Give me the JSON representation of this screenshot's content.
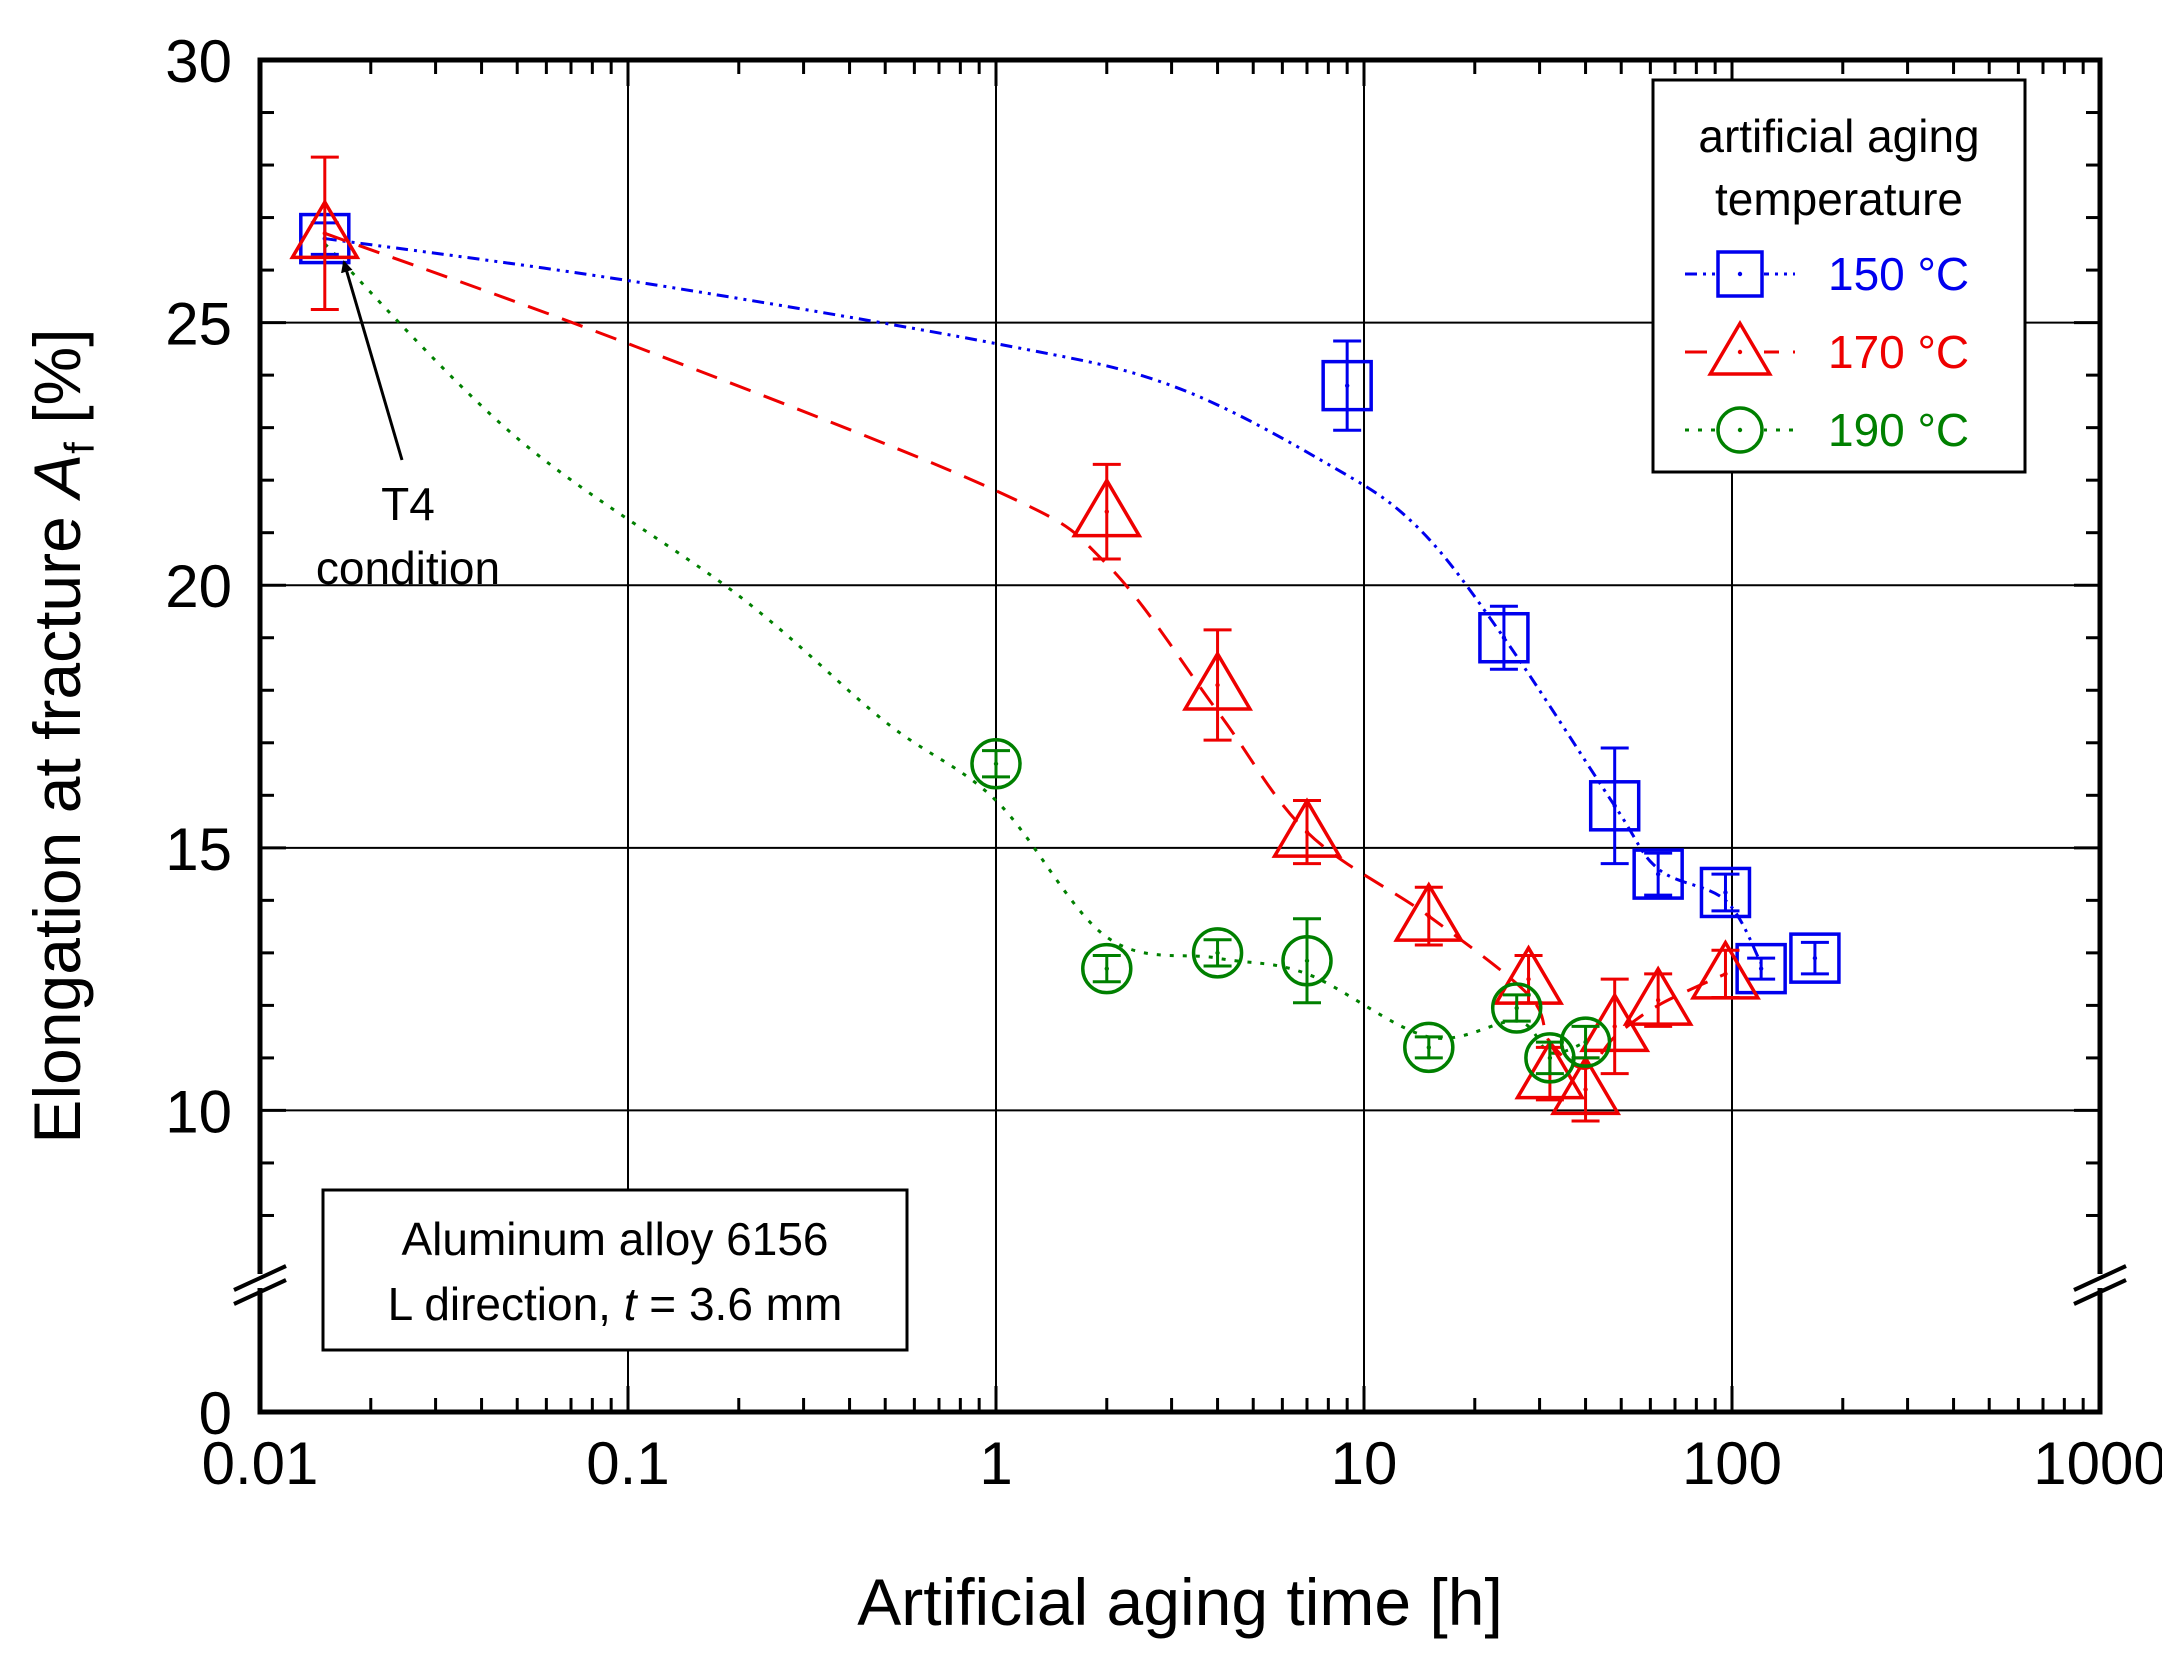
{
  "chart_data": {
    "type": "scatter",
    "xscale": "log",
    "xlim": [
      0.01,
      1000
    ],
    "ylim_lower_segment": [
      0,
      7
    ],
    "ylim_upper_segment": [
      7,
      30
    ],
    "axis_break": "y between 0 and 7",
    "grid": true,
    "xlabel": "Artificial aging time [h]",
    "ylabel_main": "Elongation at fracture ",
    "ylabel_symbol": "A",
    "ylabel_sub": "f",
    "ylabel_unit": " [%]",
    "x_tick_labels": [
      "0.01",
      "0.1",
      "1",
      "10",
      "100",
      "1000"
    ],
    "y_tick_labels": [
      "0",
      "10",
      "15",
      "20",
      "25",
      "30"
    ],
    "legend": {
      "title_line1": "artificial aging",
      "title_line2": "temperature",
      "placement": "top-right"
    },
    "series": [
      {
        "name": "150 °C",
        "color": "#0000ee",
        "marker": "square",
        "line_style": "dash-dot-dot",
        "points": [
          {
            "x": 0.015,
            "y": 26.6,
            "err": 0.3
          },
          {
            "x": 9,
            "y": 23.8,
            "err": 0.85
          },
          {
            "x": 24,
            "y": 19.0,
            "err": 0.6
          },
          {
            "x": 48,
            "y": 15.8,
            "err": 1.1
          },
          {
            "x": 63,
            "y": 14.5,
            "err": 0.4
          },
          {
            "x": 96,
            "y": 14.15,
            "err": 0.35
          },
          {
            "x": 120,
            "y": 12.7,
            "err": 0.2
          },
          {
            "x": 168,
            "y": 12.9,
            "err": 0.3
          }
        ],
        "curve": [
          [
            0.015,
            26.6
          ],
          [
            0.1,
            25.8
          ],
          [
            1,
            24.6
          ],
          [
            3,
            23.8
          ],
          [
            8,
            22.3
          ],
          [
            14,
            21.1
          ],
          [
            24,
            19.0
          ],
          [
            48,
            15.8
          ],
          [
            63,
            14.6
          ],
          [
            96,
            14.0
          ],
          [
            120,
            12.8
          ]
        ]
      },
      {
        "name": "170 °C",
        "color": "#ee0000",
        "marker": "triangle",
        "line_style": "dash",
        "points": [
          {
            "x": 0.015,
            "y": 26.7,
            "err": 1.45
          },
          {
            "x": 2,
            "y": 21.4,
            "err": 0.9
          },
          {
            "x": 4,
            "y": 18.1,
            "err": 1.05
          },
          {
            "x": 7,
            "y": 15.3,
            "err": 0.6
          },
          {
            "x": 15,
            "y": 13.7,
            "err": 0.55
          },
          {
            "x": 28,
            "y": 12.5,
            "err": 0.45
          },
          {
            "x": 32,
            "y": 10.7,
            "err": 0.5
          },
          {
            "x": 40,
            "y": 10.4,
            "err": 0.6
          },
          {
            "x": 48,
            "y": 11.6,
            "err": 0.9
          },
          {
            "x": 63,
            "y": 12.1,
            "err": 0.5
          },
          {
            "x": 96,
            "y": 12.6,
            "err": 0.45
          }
        ],
        "curve": [
          [
            0.015,
            26.7
          ],
          [
            0.1,
            24.6
          ],
          [
            1,
            21.8
          ],
          [
            2,
            20.4
          ],
          [
            4,
            17.6
          ],
          [
            7,
            15.3
          ],
          [
            15,
            13.7
          ],
          [
            28,
            12.2
          ],
          [
            32,
            11.3
          ],
          [
            40,
            10.8
          ],
          [
            48,
            11.4
          ],
          [
            63,
            12.0
          ],
          [
            96,
            12.6
          ]
        ]
      },
      {
        "name": "190 °C",
        "color": "#008000",
        "marker": "circle",
        "line_style": "dot",
        "points": [
          {
            "x": 1,
            "y": 16.6,
            "err": 0.25
          },
          {
            "x": 2,
            "y": 12.7,
            "err": 0.25
          },
          {
            "x": 4,
            "y": 13.0,
            "err": 0.25
          },
          {
            "x": 7,
            "y": 12.85,
            "err": 0.8
          },
          {
            "x": 15,
            "y": 11.2,
            "err": 0.2
          },
          {
            "x": 26,
            "y": 11.95,
            "err": 0.25
          },
          {
            "x": 32,
            "y": 11.0,
            "err": 0.3
          },
          {
            "x": 40,
            "y": 11.3,
            "err": 0.3
          }
        ],
        "curve": [
          [
            0.015,
            26.5
          ],
          [
            0.05,
            22.8
          ],
          [
            0.2,
            19.8
          ],
          [
            0.5,
            17.4
          ],
          [
            1,
            15.9
          ],
          [
            2,
            13.3
          ],
          [
            4,
            12.9
          ],
          [
            7,
            12.6
          ],
          [
            15,
            11.4
          ],
          [
            26,
            11.7
          ],
          [
            32,
            11.1
          ],
          [
            40,
            11.3
          ]
        ]
      }
    ],
    "annotations": [
      {
        "text_line1": "T4",
        "text_line2": "condition",
        "points_to_x": 0.015,
        "points_to_y": 26.6
      }
    ],
    "info_box": {
      "line1": "Aluminum alloy 6156",
      "line2_a": "L direction, ",
      "line2_symbol": "t",
      "line2_b": " = 3.6 mm"
    }
  }
}
